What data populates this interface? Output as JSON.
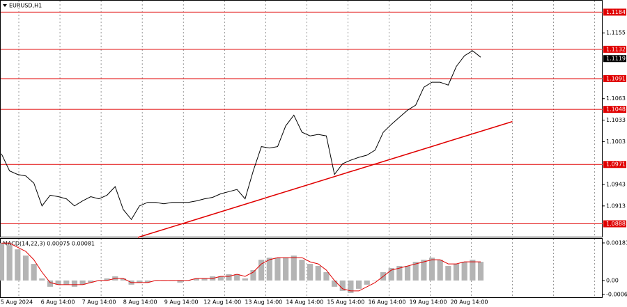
{
  "chart_data": [
    {
      "type": "line",
      "title": "EURUSD,H1",
      "color": "#000000",
      "values": [
        1.0986,
        1.0962,
        1.0957,
        1.0955,
        1.0945,
        1.0913,
        1.0928,
        1.0926,
        1.0923,
        1.0913,
        1.092,
        1.0926,
        1.0923,
        1.0928,
        1.094,
        1.0908,
        1.0894,
        1.0913,
        1.0918,
        1.0918,
        1.0916,
        1.0918,
        1.0918,
        1.0918,
        1.092,
        1.0923,
        1.0925,
        1.093,
        1.0933,
        1.0936,
        1.0923,
        1.0962,
        1.0996,
        1.0994,
        1.0996,
        1.1025,
        1.104,
        1.1016,
        1.1011,
        1.1013,
        1.1011,
        1.0957,
        1.0972,
        1.0977,
        1.0981,
        1.0984,
        1.0991,
        1.1016,
        1.1027,
        1.1037,
        1.1047,
        1.1054,
        1.1079,
        1.1086,
        1.1086,
        1.1082,
        1.1108,
        1.1123,
        1.113,
        1.1121
      ],
      "ylim": [
        1.087,
        1.12
      ],
      "yticks": [
        1.1155,
        1.1063,
        1.1033,
        1.1003,
        1.0943,
        1.0913
      ],
      "levels": [
        1.1184,
        1.1132,
        1.1091,
        1.1048,
        1.0971,
        1.0888
      ],
      "level_color": "#e00000",
      "last_price": 1.1119,
      "trendline": {
        "x": [
          16.8,
          62.9
        ],
        "y": [
          1.0869,
          1.1031
        ]
      },
      "xtick_labels": [
        "5 Aug 2024",
        "6 Aug 14:00",
        "7 Aug 14:00",
        "8 Aug 14:00",
        "9 Aug 14:00",
        "12 Aug 14:00",
        "13 Aug 14:00",
        "14 Aug 14:00",
        "15 Aug 14:00",
        "16 Aug 14:00",
        "19 Aug 14:00",
        "20 Aug 14:00"
      ]
    },
    {
      "type": "bar",
      "title": "MACD(14,22,3) 0.00075 0.00081",
      "color": "#b4b4b4",
      "values": [
        0.0018,
        0.0017,
        0.0015,
        0.0012,
        0.0008,
        0.0001,
        -0.0003,
        -0.0002,
        -0.0002,
        -0.0003,
        -0.0002,
        -0.0001,
        0,
        0.0001,
        0.0002,
        0.0001,
        -0.0002,
        -0.0001,
        -0.0001,
        0,
        0,
        0,
        -0.0001,
        0,
        0.0001,
        0.0001,
        0.0002,
        0.0002,
        0.0003,
        0.0003,
        0.0001,
        0.0005,
        0.001,
        0.0011,
        0.0011,
        0.0011,
        0.0012,
        0.001,
        0.0008,
        0.0007,
        0.0004,
        -0.0003,
        -0.0005,
        -0.0006,
        -0.0004,
        -0.0002,
        0,
        0.0004,
        0.0006,
        0.0007,
        0.0007,
        0.0009,
        0.001,
        0.0011,
        0.001,
        0.0007,
        0.0008,
        0.0009,
        0.001,
        0.0009
      ],
      "signal": [
        0.0018,
        0.0018,
        0.0016,
        0.0014,
        0.001,
        0.0004,
        -0.0001,
        -0.0002,
        -0.0002,
        -0.0002,
        -0.0002,
        -0.0001,
        0,
        0,
        0.0001,
        0.0001,
        -0.0001,
        -0.0001,
        -0.0001,
        0,
        0,
        0,
        0,
        0,
        0.0001,
        0.0001,
        0.0001,
        0.0002,
        0.0002,
        0.0003,
        0.0002,
        0.0004,
        0.0008,
        0.001,
        0.0011,
        0.0011,
        0.0011,
        0.0011,
        0.0009,
        0.0008,
        0.0005,
        0,
        -0.0004,
        -0.0005,
        -0.0005,
        -0.0003,
        -0.0001,
        0.0002,
        0.0005,
        0.0006,
        0.0007,
        0.0008,
        0.0009,
        0.001,
        0.001,
        0.0008,
        0.0008,
        0.0009,
        0.0009,
        0.0009
      ],
      "signal_color": "#e00000",
      "ylim": [
        -0.00084,
        0.00201
      ],
      "yticks": [
        0.00181,
        {
          "value": 0,
          "label": "0.00"
        },
        -0.00067
      ]
    }
  ]
}
